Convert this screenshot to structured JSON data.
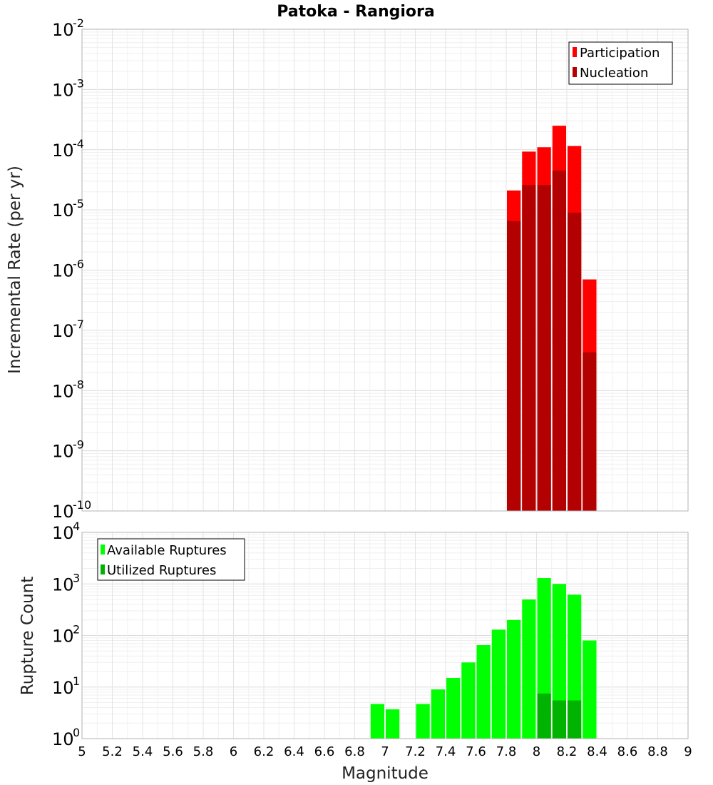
{
  "chart_data": [
    {
      "type": "bar",
      "title": "Patoka - Rangiora",
      "xlabel": "",
      "ylabel": "Incremental Rate (per yr)",
      "yscale": "log",
      "ylim": [
        1e-10,
        0.01
      ],
      "xlim": [
        5,
        9
      ],
      "grid": true,
      "legend_placement": "top-right",
      "bin_width": 0.1,
      "series": [
        {
          "name": "Participation",
          "color": "#ff0000",
          "x": [
            7.85,
            7.95,
            8.05,
            8.15,
            8.25,
            8.35
          ],
          "values": [
            2.1e-05,
            9.3e-05,
            0.00011,
            0.00025,
            0.000115,
            7e-07
          ]
        },
        {
          "name": "Nucleation",
          "color": "#b30000",
          "x": [
            7.85,
            7.95,
            8.05,
            8.15,
            8.25,
            8.35
          ],
          "values": [
            6.5e-06,
            2.6e-05,
            2.6e-05,
            4.5e-05,
            9e-06,
            4.3e-08
          ]
        }
      ]
    },
    {
      "type": "bar",
      "title": "",
      "xlabel": "Magnitude",
      "ylabel": "Rupture Count",
      "yscale": "log",
      "ylim": [
        1,
        10000
      ],
      "xlim": [
        5,
        9
      ],
      "grid": true,
      "legend_placement": "top-left",
      "bin_width": 0.1,
      "series": [
        {
          "name": "Available Ruptures",
          "color": "#00ff00",
          "x": [
            6.95,
            7.05,
            7.25,
            7.35,
            7.45,
            7.55,
            7.65,
            7.75,
            7.85,
            7.95,
            8.05,
            8.15,
            8.25,
            8.35
          ],
          "values": [
            4.7,
            3.7,
            4.7,
            9,
            15,
            30,
            65,
            130,
            200,
            500,
            1300,
            1000,
            620,
            80
          ]
        },
        {
          "name": "Utilized Ruptures",
          "color": "#00b300",
          "x": [
            7.85,
            7.95,
            8.05,
            8.15,
            8.25,
            8.35
          ],
          "values": [
            1,
            1,
            7.5,
            5.5,
            5.5,
            1
          ]
        }
      ]
    }
  ],
  "x_ticks": [
    "5",
    "5.2",
    "5.4",
    "5.6",
    "5.8",
    "6",
    "6.2",
    "6.4",
    "6.6",
    "6.8",
    "7",
    "7.2",
    "7.4",
    "7.6",
    "7.8",
    "8",
    "8.2",
    "8.4",
    "8.6",
    "8.8",
    "9"
  ],
  "top_y_ticks": [
    {
      "base": "10",
      "exp": "-10"
    },
    {
      "base": "10",
      "exp": "-9"
    },
    {
      "base": "10",
      "exp": "-8"
    },
    {
      "base": "10",
      "exp": "-7"
    },
    {
      "base": "10",
      "exp": "-6"
    },
    {
      "base": "10",
      "exp": "-5"
    },
    {
      "base": "10",
      "exp": "-4"
    },
    {
      "base": "10",
      "exp": "-3"
    },
    {
      "base": "10",
      "exp": "-2"
    }
  ],
  "bottom_y_ticks": [
    {
      "base": "10",
      "exp": "0"
    },
    {
      "base": "10",
      "exp": "1"
    },
    {
      "base": "10",
      "exp": "2"
    },
    {
      "base": "10",
      "exp": "3"
    },
    {
      "base": "10",
      "exp": "4"
    }
  ]
}
